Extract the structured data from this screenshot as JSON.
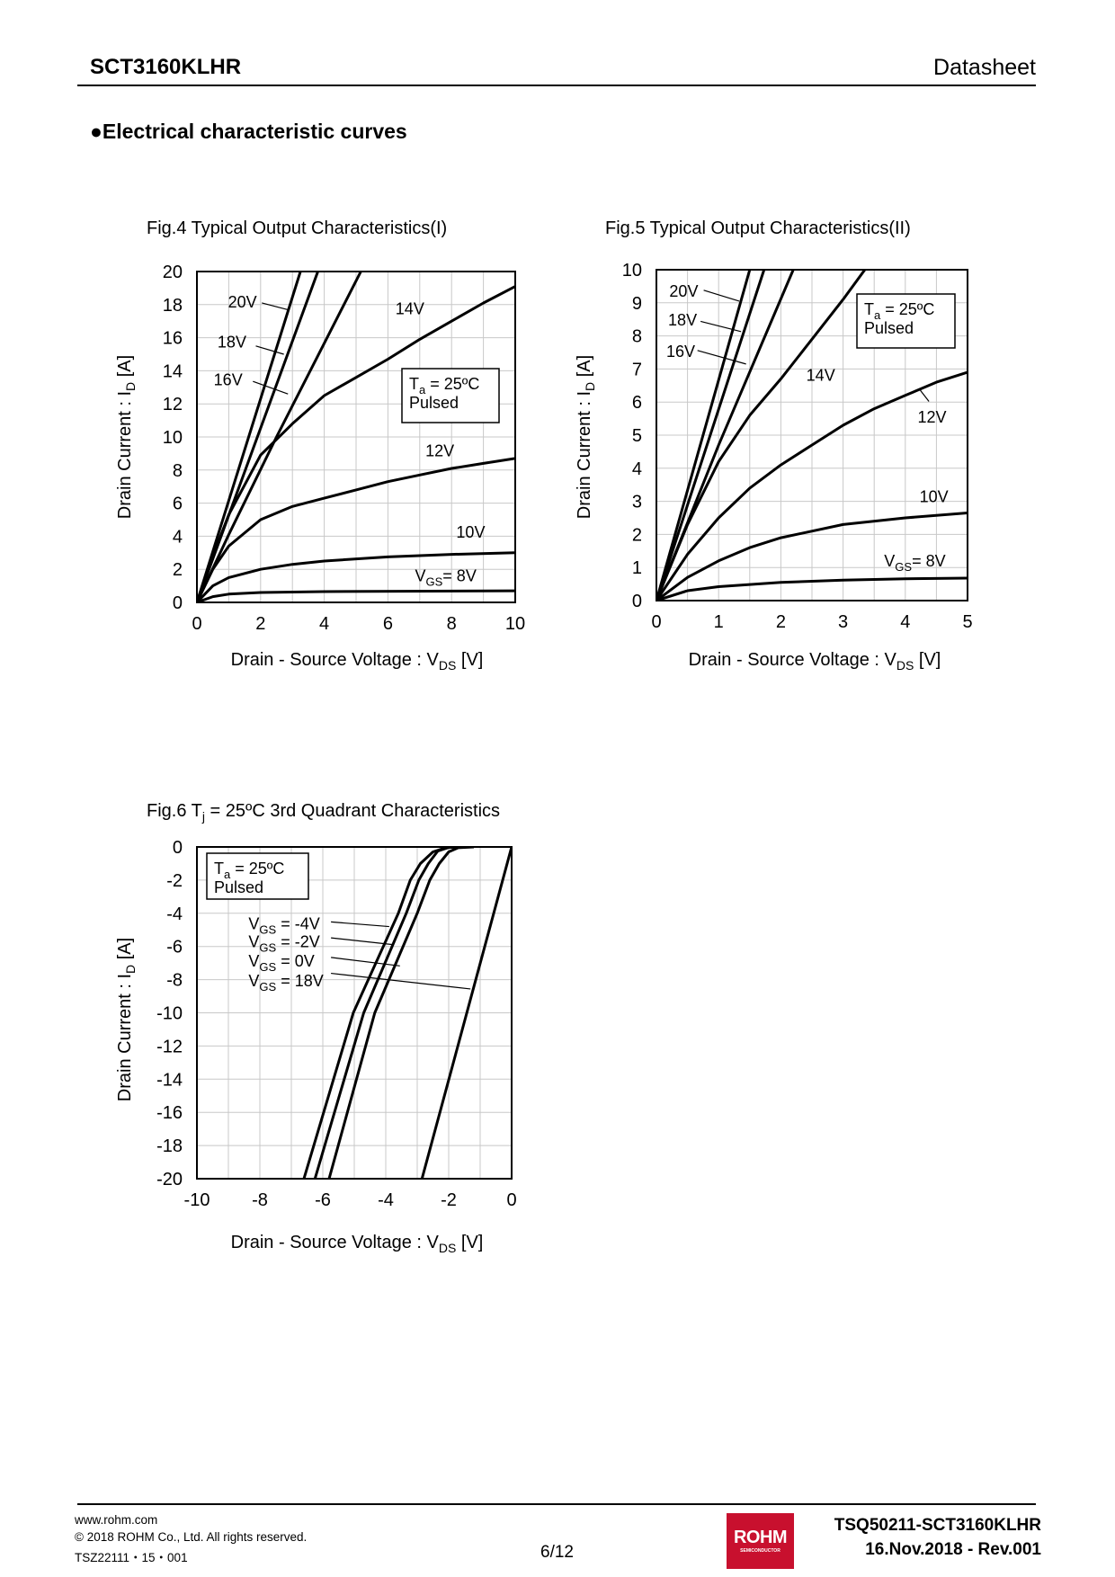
{
  "header": {
    "part_number": "SCT3160KLHR",
    "doc_type": "Datasheet"
  },
  "section_title": "●Electrical characteristic curves",
  "footer": {
    "website": "www.rohm.com",
    "copyright": "© 2018 ROHM Co., Ltd. All rights reserved.",
    "code": "TSZ22111・15・001",
    "page": "6/12",
    "logo_text": "ROHM",
    "logo_subtext": "SEMICONDUCTOR",
    "doc_number": "TSQ50211-SCT3160KLHR",
    "revision": "16.Nov.2018 - Rev.001"
  },
  "colors": {
    "curve": "#000000",
    "grid": "#c8c8c8",
    "logo": "#c8102e"
  },
  "chart_data": [
    {
      "type": "line",
      "title": "Fig.4 Typical Output Characteristics(I)",
      "xlabel": {
        "main": "Drain - Source Voltage : V",
        "sub": "DS",
        "rest": " [V]"
      },
      "ylabel": {
        "main": "Drain Current : I",
        "sub": "D",
        "rest": " [A]"
      },
      "xlim": [
        0,
        10
      ],
      "ylim": [
        0,
        20
      ],
      "xticks": [
        0,
        2,
        4,
        6,
        8,
        10
      ],
      "yticks": [
        0,
        2,
        4,
        6,
        8,
        10,
        12,
        14,
        16,
        18,
        20
      ],
      "grid": true,
      "condition": {
        "main": "T",
        "sub": "a",
        "rest": " = 25ºC",
        "line2": "Pulsed"
      },
      "series": [
        {
          "name": "20V",
          "label": {
            "main": "20V"
          },
          "points": [
            [
              0,
              0
            ],
            [
              3.25,
              20
            ]
          ]
        },
        {
          "name": "18V",
          "label": {
            "main": "18V"
          },
          "points": [
            [
              0,
              0
            ],
            [
              3.8,
              20
            ]
          ]
        },
        {
          "name": "16V",
          "label": {
            "main": "16V"
          },
          "points": [
            [
              0,
              0
            ],
            [
              1,
              4.1
            ],
            [
              2.5,
              10
            ],
            [
              5.15,
              20
            ]
          ]
        },
        {
          "name": "14V",
          "label": {
            "main": "14V"
          },
          "points": [
            [
              0,
              0
            ],
            [
              0.5,
              2.8
            ],
            [
              1,
              5.3
            ],
            [
              2,
              8.9
            ],
            [
              3,
              10.8
            ],
            [
              4,
              12.5
            ],
            [
              5,
              13.6
            ],
            [
              6,
              14.7
            ],
            [
              7,
              15.9
            ],
            [
              8,
              17
            ],
            [
              9,
              18.1
            ],
            [
              10,
              19.1
            ]
          ]
        },
        {
          "name": "12V",
          "label": {
            "main": "12V"
          },
          "points": [
            [
              0,
              0
            ],
            [
              0.5,
              2
            ],
            [
              1,
              3.4
            ],
            [
              2,
              5
            ],
            [
              3,
              5.8
            ],
            [
              4,
              6.3
            ],
            [
              5,
              6.8
            ],
            [
              6,
              7.3
            ],
            [
              7,
              7.7
            ],
            [
              8,
              8.1
            ],
            [
              9,
              8.4
            ],
            [
              10,
              8.7
            ]
          ]
        },
        {
          "name": "10V",
          "label": {
            "main": "10V"
          },
          "points": [
            [
              0,
              0
            ],
            [
              0.5,
              1
            ],
            [
              1,
              1.5
            ],
            [
              2,
              2
            ],
            [
              3,
              2.3
            ],
            [
              4,
              2.5
            ],
            [
              6,
              2.75
            ],
            [
              8,
              2.9
            ],
            [
              10,
              3.0
            ]
          ]
        },
        {
          "name": "8V",
          "label": {
            "main": "V",
            "sub": "GS",
            "rest": "= 8V"
          },
          "points": [
            [
              0,
              0
            ],
            [
              0.5,
              0.35
            ],
            [
              1,
              0.5
            ],
            [
              2,
              0.6
            ],
            [
              4,
              0.65
            ],
            [
              10,
              0.7
            ]
          ]
        }
      ]
    },
    {
      "type": "line",
      "title": "Fig.5 Typical Output Characteristics(II)",
      "xlabel": {
        "main": "Drain - Source Voltage : V",
        "sub": "DS",
        "rest": " [V]"
      },
      "ylabel": {
        "main": "Drain Current : I",
        "sub": "D",
        "rest": " [A]"
      },
      "xlim": [
        0,
        5
      ],
      "ylim": [
        0,
        10
      ],
      "xticks": [
        0,
        1,
        2,
        3,
        4,
        5
      ],
      "yticks": [
        0,
        1,
        2,
        3,
        4,
        5,
        6,
        7,
        8,
        9,
        10
      ],
      "grid": true,
      "condition": {
        "main": "T",
        "sub": "a",
        "rest": " = 25ºC",
        "line2": "Pulsed"
      },
      "series": [
        {
          "name": "20V",
          "label": {
            "main": "20V"
          },
          "points": [
            [
              0,
              0
            ],
            [
              1.5,
              10
            ]
          ]
        },
        {
          "name": "18V",
          "label": {
            "main": "18V"
          },
          "points": [
            [
              0,
              0
            ],
            [
              1.73,
              10
            ]
          ]
        },
        {
          "name": "16V",
          "label": {
            "main": "16V"
          },
          "points": [
            [
              0,
              0
            ],
            [
              1,
              4.7
            ],
            [
              2.2,
              10
            ]
          ]
        },
        {
          "name": "14V",
          "label": {
            "main": "14V"
          },
          "points": [
            [
              0,
              0
            ],
            [
              0.5,
              2.3
            ],
            [
              1,
              4.2
            ],
            [
              1.5,
              5.6
            ],
            [
              2,
              6.7
            ],
            [
              2.5,
              7.9
            ],
            [
              3,
              9.1
            ],
            [
              3.35,
              10
            ]
          ]
        },
        {
          "name": "12V",
          "label": {
            "main": "12V"
          },
          "points": [
            [
              0,
              0
            ],
            [
              0.5,
              1.4
            ],
            [
              1,
              2.5
            ],
            [
              1.5,
              3.4
            ],
            [
              2,
              4.1
            ],
            [
              2.5,
              4.7
            ],
            [
              3,
              5.3
            ],
            [
              3.5,
              5.8
            ],
            [
              4,
              6.2
            ],
            [
              4.5,
              6.6
            ],
            [
              5,
              6.9
            ]
          ]
        },
        {
          "name": "10V",
          "label": {
            "main": "10V"
          },
          "points": [
            [
              0,
              0
            ],
            [
              0.5,
              0.7
            ],
            [
              1,
              1.2
            ],
            [
              1.5,
              1.6
            ],
            [
              2,
              1.9
            ],
            [
              3,
              2.3
            ],
            [
              4,
              2.5
            ],
            [
              5,
              2.65
            ]
          ]
        },
        {
          "name": "8V",
          "label": {
            "main": "V",
            "sub": "GS",
            "rest": "= 8V"
          },
          "points": [
            [
              0,
              0
            ],
            [
              0.5,
              0.3
            ],
            [
              1,
              0.42
            ],
            [
              2,
              0.55
            ],
            [
              3,
              0.62
            ],
            [
              4,
              0.66
            ],
            [
              5,
              0.68
            ]
          ]
        }
      ]
    },
    {
      "type": "line",
      "title": {
        "main": "Fig.6 T",
        "sub": "j",
        "rest": " = 25ºC 3rd Quadrant Characteristics"
      },
      "xlabel": {
        "main": "Drain - Source Voltage : V",
        "sub": "DS",
        "rest": " [V]"
      },
      "ylabel": {
        "main": "Drain Current : I",
        "sub": "D",
        "rest": " [A]"
      },
      "xlim": [
        -10,
        0
      ],
      "ylim": [
        -20,
        0
      ],
      "xticks": [
        -10,
        -8,
        -6,
        -4,
        -2,
        0
      ],
      "yticks": [
        0,
        -2,
        -4,
        -6,
        -8,
        -10,
        -12,
        -14,
        -16,
        -18,
        -20
      ],
      "grid": true,
      "condition": {
        "main": "T",
        "sub": "a",
        "rest": " = 25ºC",
        "line2": "Pulsed"
      },
      "series": [
        {
          "name": "-4V",
          "label": {
            "main": "V",
            "sub": "GS",
            "rest": " = -4V"
          },
          "points": [
            [
              -6.6,
              -20
            ],
            [
              -5.03,
              -10
            ],
            [
              -3.6,
              -4
            ],
            [
              -3.22,
              -2
            ],
            [
              -2.9,
              -1
            ],
            [
              -2.5,
              -0.3
            ],
            [
              -2.1,
              -0.05
            ],
            [
              -1.8,
              0
            ]
          ]
        },
        {
          "name": "-2V",
          "label": {
            "main": "V",
            "sub": "GS",
            "rest": " = -2V"
          },
          "points": [
            [
              -6.25,
              -20
            ],
            [
              -4.7,
              -10
            ],
            [
              -3.35,
              -4
            ],
            [
              -2.95,
              -2
            ],
            [
              -2.65,
              -1
            ],
            [
              -2.35,
              -0.25
            ],
            [
              -2,
              -0.03
            ],
            [
              -1.7,
              0
            ]
          ]
        },
        {
          "name": "0V",
          "label": {
            "main": "V",
            "sub": "GS",
            "rest": " =  0V"
          },
          "points": [
            [
              -5.8,
              -20
            ],
            [
              -4.35,
              -10
            ],
            [
              -3.0,
              -4
            ],
            [
              -2.6,
              -2
            ],
            [
              -2.3,
              -1
            ],
            [
              -2.0,
              -0.3
            ],
            [
              -1.7,
              -0.05
            ],
            [
              -1.2,
              0
            ]
          ]
        },
        {
          "name": "18V",
          "label": {
            "main": "V",
            "sub": "GS",
            "rest": " = 18V"
          },
          "points": [
            [
              -2.85,
              -20
            ],
            [
              0,
              0
            ]
          ]
        }
      ]
    }
  ]
}
